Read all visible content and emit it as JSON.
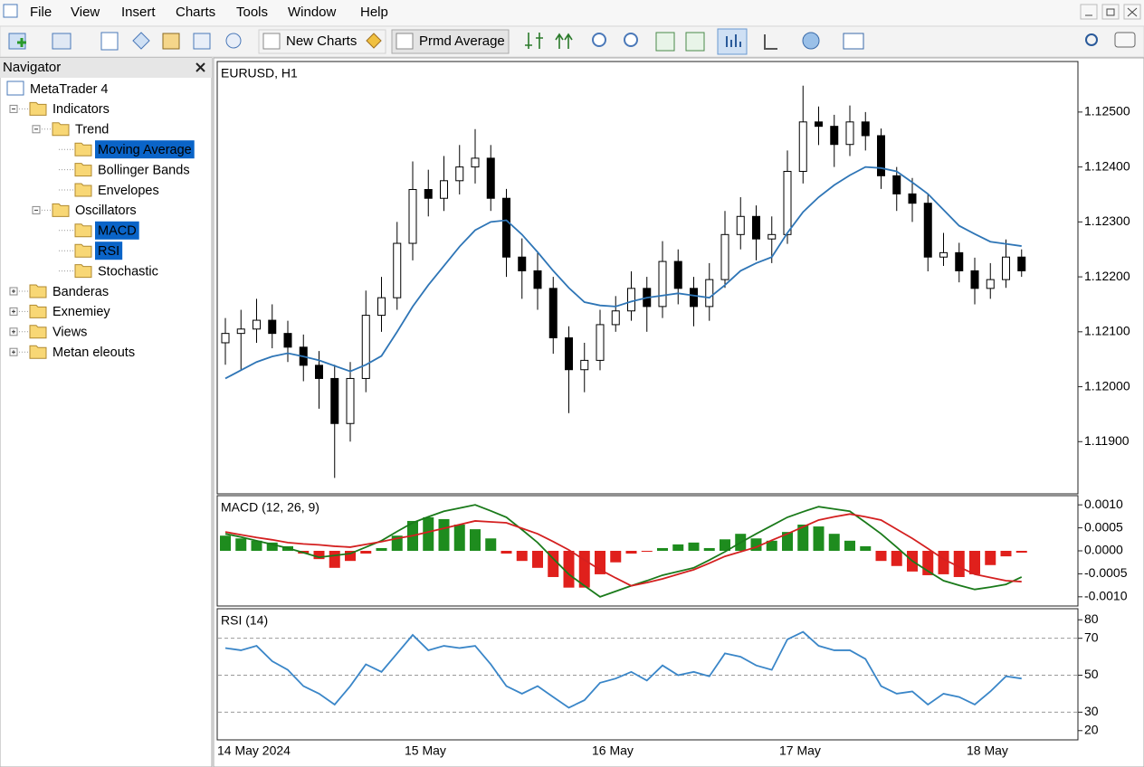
{
  "menu": [
    "File",
    "View",
    "Insert",
    "Charts",
    "Tools",
    "Window",
    "Help"
  ],
  "toolbar": {
    "new_charts": "New Charts",
    "active_indicator": "Prmd Average"
  },
  "navigator": {
    "title": "Navigator",
    "tree": {
      "label": "MetaTrader 4",
      "children": [
        {
          "label": "Indicators",
          "children": [
            {
              "label": "Trend",
              "children": [
                {
                  "label": "Moving Average",
                  "selected": true
                },
                {
                  "label": "Bollinger Bands"
                },
                {
                  "label": "Envelopes"
                }
              ]
            },
            {
              "label": "Oscillators",
              "children": [
                {
                  "label": "MACD",
                  "selected": true
                },
                {
                  "label": "RSI",
                  "selected": true
                },
                {
                  "label": "Stochastic"
                }
              ]
            }
          ]
        },
        {
          "label": "Banderas"
        },
        {
          "label": "Exnemiey"
        },
        {
          "label": "Views"
        },
        {
          "label": "Metan eleouts"
        }
      ]
    }
  },
  "chart_data": [
    {
      "type": "candlestick",
      "title": "EURUSD, H1",
      "categories": [
        "14 May 2024",
        null,
        null,
        null,
        null,
        null,
        null,
        null,
        null,
        null,
        null,
        null,
        "15 May",
        null,
        null,
        null,
        null,
        null,
        null,
        null,
        null,
        null,
        null,
        null,
        "16 May",
        null,
        null,
        null,
        null,
        null,
        null,
        null,
        null,
        null,
        null,
        null,
        "17 May",
        null,
        null,
        null,
        null,
        null,
        null,
        null,
        null,
        null,
        null,
        null,
        "18 May",
        null,
        null,
        null
      ],
      "open": [
        1.1208,
        1.12097,
        1.12105,
        1.12121,
        1.12097,
        1.12072,
        1.12039,
        1.12015,
        1.11933,
        1.12015,
        1.1213,
        1.12162,
        1.12261,
        1.12359,
        1.12343,
        1.12375,
        1.124,
        1.12416,
        1.12343,
        1.12236,
        1.12211,
        1.12179,
        1.12089,
        1.12031,
        1.12048,
        1.12113,
        1.12138,
        1.12179,
        1.12146,
        1.12228,
        1.12179,
        1.12146,
        1.12195,
        1.12277,
        1.1231,
        1.12269,
        1.12277,
        1.12392,
        1.12482,
        1.12474,
        1.12441,
        1.12482,
        1.12457,
        1.12384,
        1.12351,
        1.12334,
        1.12236,
        1.12244,
        1.12211,
        1.12179,
        1.12195,
        1.12236
      ],
      "high": [
        1.12125,
        1.1214,
        1.1216,
        1.1215,
        1.1212,
        1.12095,
        1.12065,
        1.1204,
        1.12045,
        1.12175,
        1.122,
        1.123,
        1.1241,
        1.12395,
        1.1242,
        1.1244,
        1.12469,
        1.1244,
        1.1236,
        1.1227,
        1.12245,
        1.122,
        1.1211,
        1.1208,
        1.1214,
        1.12165,
        1.1221,
        1.122,
        1.12265,
        1.1225,
        1.122,
        1.12225,
        1.1232,
        1.12345,
        1.1233,
        1.1231,
        1.1243,
        1.12548,
        1.1251,
        1.12495,
        1.12512,
        1.125,
        1.1247,
        1.124,
        1.1238,
        1.1235,
        1.1228,
        1.12262,
        1.12235,
        1.12225,
        1.12268,
        1.1225
      ],
      "low": [
        1.1204,
        1.1203,
        1.1208,
        1.1207,
        1.12045,
        1.1201,
        1.1196,
        1.11834,
        1.119,
        1.1199,
        1.121,
        1.1214,
        1.1223,
        1.1231,
        1.1232,
        1.1235,
        1.1237,
        1.1232,
        1.122,
        1.1216,
        1.1214,
        1.1206,
        1.11952,
        1.1199,
        1.1203,
        1.121,
        1.1212,
        1.121,
        1.12125,
        1.1215,
        1.1211,
        1.1212,
        1.1218,
        1.1225,
        1.1223,
        1.12225,
        1.1226,
        1.1237,
        1.1244,
        1.124,
        1.1242,
        1.1243,
        1.1236,
        1.1232,
        1.123,
        1.1221,
        1.1222,
        1.1219,
        1.1215,
        1.1216,
        1.1218,
        1.122
      ],
      "close": [
        1.12097,
        1.12105,
        1.12121,
        1.12097,
        1.12072,
        1.12039,
        1.12015,
        1.11933,
        1.12015,
        1.1213,
        1.12162,
        1.12261,
        1.12359,
        1.12343,
        1.12375,
        1.124,
        1.12416,
        1.12343,
        1.12236,
        1.12211,
        1.12179,
        1.12089,
        1.12031,
        1.12048,
        1.12113,
        1.12138,
        1.12179,
        1.12146,
        1.12228,
        1.12179,
        1.12146,
        1.12195,
        1.12277,
        1.1231,
        1.12269,
        1.12277,
        1.12392,
        1.12482,
        1.12474,
        1.12441,
        1.12482,
        1.12457,
        1.12384,
        1.12351,
        1.12334,
        1.12236,
        1.12244,
        1.12211,
        1.12179,
        1.12195,
        1.12236,
        1.12211
      ],
      "up_color": "#ffffff",
      "down_color": "#000000",
      "overlay": {
        "color": "#2e75b6",
        "values": [
          1.12015,
          1.1203,
          1.12045,
          1.12055,
          1.12061,
          1.12055,
          1.12048,
          1.12038,
          1.12028,
          1.1204,
          1.12056,
          1.121,
          1.12146,
          1.12185,
          1.1222,
          1.12255,
          1.12285,
          1.123,
          1.12303,
          1.12277,
          1.12245,
          1.12211,
          1.1218,
          1.12154,
          1.12148,
          1.12146,
          1.12155,
          1.12162,
          1.12166,
          1.1217,
          1.12166,
          1.12162,
          1.12185,
          1.12211,
          1.12225,
          1.12236,
          1.1228,
          1.12318,
          1.12345,
          1.12367,
          1.12385,
          1.124,
          1.12398,
          1.12392,
          1.12372,
          1.12351,
          1.12322,
          1.12293,
          1.12278,
          1.12264,
          1.1226,
          1.12256
        ]
      },
      "ylim": [
        1.11805,
        1.12592
      ],
      "yticks": [
        {
          "value": 1.125,
          "label": "1.12500"
        },
        {
          "value": 1.124,
          "label": "1.12400"
        },
        {
          "value": 1.123,
          "label": "1.12300"
        },
        {
          "value": 1.122,
          "label": "1.12200"
        },
        {
          "value": 1.121,
          "label": "1.12100"
        },
        {
          "value": 1.12,
          "label": "1.12000"
        },
        {
          "value": 1.119,
          "label": "1.11900"
        }
      ]
    },
    {
      "type": "macd",
      "title": "MACD (12, 26, 9)",
      "histogram": [
        0.00033,
        0.00027,
        0.00022,
        0.00018,
        0.0001,
        -6e-05,
        -0.00018,
        -0.00037,
        -0.00022,
        -6e-05,
        6e-05,
        0.00033,
        0.00065,
        0.00073,
        0.00069,
        0.00057,
        0.00047,
        0.00027,
        -6e-05,
        -0.00022,
        -0.00037,
        -0.00057,
        -0.0008,
        -0.0008,
        -0.00051,
        -0.00025,
        -6e-05,
        -2e-05,
        6e-05,
        0.00014,
        0.00018,
        6e-05,
        0.00025,
        0.00037,
        0.00027,
        0.00022,
        0.00041,
        0.00057,
        0.00053,
        0.00037,
        0.00022,
        0.0001,
        -0.00022,
        -0.00033,
        -0.00045,
        -0.00053,
        -0.00051,
        -0.00057,
        -0.00051,
        -0.00031,
        -0.00012,
        -4e-05
      ],
      "up_color": "#1e8c1e",
      "down_color": "#e0201c",
      "series": [
        {
          "color": "#1a7a1a",
          "values": [
            0.00037,
            0.0003,
            0.00022,
            0.00014,
            6e-05,
            -4e-05,
            -0.00014,
            -0.0001,
            -6e-05,
            8e-05,
            0.00022,
            0.00042,
            0.00061,
            0.00074,
            0.00086,
            0.00093,
            0.001,
            0.00087,
            0.00073,
            0.00046,
            0.00018,
            -0.00017,
            -0.00051,
            -0.00076,
            -0.001,
            -0.00088,
            -0.00076,
            -0.00065,
            -0.00053,
            -0.00045,
            -0.00037,
            -0.0002,
            -2e-05,
            0.00018,
            0.00037,
            0.00055,
            0.00073,
            0.00085,
            0.00096,
            0.00091,
            0.00086,
            0.00062,
            0.00037,
            8e-05,
            -0.00022,
            -0.00044,
            -0.00065,
            -0.00075,
            -0.00084,
            -0.00079,
            -0.00073,
            -0.00057
          ]
        },
        {
          "color": "#d42020",
          "values": [
            0.00041,
            0.00035,
            0.00029,
            0.00024,
            0.00018,
            0.00015,
            0.00013,
            0.0001,
            8e-05,
            0.00014,
            0.0002,
            0.00027,
            0.00033,
            0.00041,
            0.00049,
            0.00057,
            0.00065,
            0.00063,
            0.00061,
            0.00049,
            0.00037,
            0.0002,
            2e-05,
            -0.0002,
            -0.00041,
            -0.00059,
            -0.00076,
            -0.00069,
            -0.00061,
            -0.00051,
            -0.00041,
            -0.00027,
            -0.00012,
            -2e-05,
            8e-05,
            0.00023,
            0.00037,
            0.00052,
            0.00067,
            0.00074,
            0.0008,
            0.00074,
            0.00067,
            0.00047,
            0.00027,
            5e-05,
            -0.00018,
            -0.00035,
            -0.00051,
            -0.00058,
            -0.00065,
            -0.00067
          ]
        }
      ],
      "ylim": [
        -0.0012,
        0.0012
      ],
      "yticks": [
        {
          "value": 0.001,
          "label": "0.0010"
        },
        {
          "value": 0.0005,
          "label": "0.0005"
        },
        {
          "value": 0,
          "label": "0.0000"
        },
        {
          "value": -0.0005,
          "label": "-0.0005"
        },
        {
          "value": -0.001,
          "label": "-0.0010"
        }
      ]
    },
    {
      "type": "line",
      "title": "RSI (14)",
      "values": [
        64.7,
        63.5,
        65.9,
        57.6,
        52.9,
        44.1,
        40,
        34.1,
        44.1,
        55.9,
        51.8,
        61.8,
        71.8,
        63.5,
        65.9,
        64.7,
        65.9,
        55.9,
        44.1,
        40,
        44.1,
        38.2,
        32.4,
        36.5,
        45.9,
        48.2,
        51.8,
        47.1,
        55.3,
        50,
        51.8,
        49.4,
        61.8,
        60,
        55.3,
        52.9,
        69.4,
        73.5,
        65.9,
        63.5,
        63.5,
        58.8,
        44.1,
        40,
        41.2,
        34.1,
        40,
        38.2,
        34.1,
        41.2,
        49.4,
        48.2
      ],
      "color": "#3a86c8",
      "ylim": [
        15,
        86
      ],
      "yticks": [
        80,
        70,
        50,
        30,
        20
      ],
      "levels": [
        70,
        50,
        30
      ]
    }
  ]
}
